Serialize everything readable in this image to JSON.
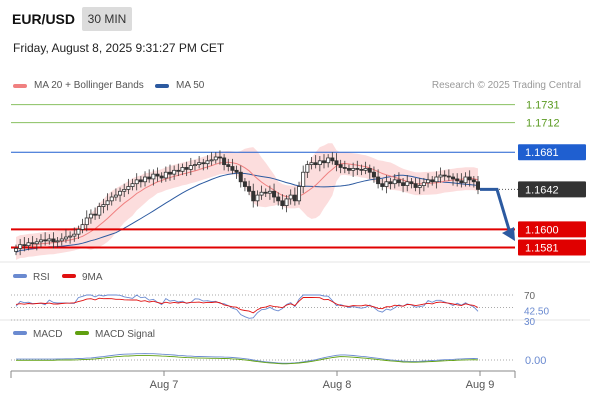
{
  "header": {
    "pair": "EUR/USD",
    "timeframe": "30 MIN",
    "datetime": "Friday, August 8, 2025 9:31:27 PM CET"
  },
  "legend": {
    "ma20_bb": "MA 20 + Bollinger Bands",
    "ma50": "MA 50",
    "credit": "Research © 2025 Trading Central"
  },
  "colors": {
    "bearish_red": "#e00000",
    "resistance_blue": "#1f5fd0",
    "target_green": "#88c060",
    "ma20": "#f08080",
    "ma50": "#2c5aa0",
    "band_fill": "#fbd7d7",
    "candle": "#333333",
    "rsi": "#6a8ad0",
    "rsi_9ma": "#e01010",
    "macd": "#6a8ad0",
    "macd_signal": "#60a010",
    "price_box": "#333333",
    "arrow": "#2c5aa0"
  },
  "chart_data": [
    {
      "type": "candlestick",
      "panel": "price",
      "ylim": [
        1.157,
        1.174
      ],
      "x_ticks": [
        "Aug 7",
        "Aug 8",
        "Aug 9"
      ],
      "current_price": 1.1642,
      "levels": [
        {
          "label": "1.1731",
          "value": 1.1731,
          "kind": "target",
          "color": "#88c060"
        },
        {
          "label": "1.1712",
          "value": 1.1712,
          "kind": "target",
          "color": "#88c060"
        },
        {
          "label": "1.1681",
          "value": 1.1681,
          "kind": "pivot",
          "color": "#1f5fd0"
        },
        {
          "label": "1.1642",
          "value": 1.1642,
          "kind": "last",
          "color": "#333333"
        },
        {
          "label": "1.1600",
          "value": 1.16,
          "kind": "support",
          "color": "#e00000"
        },
        {
          "label": "1.1581",
          "value": 1.1581,
          "kind": "support",
          "color": "#e00000"
        }
      ],
      "series_close": [
        1.158,
        1.1584,
        1.1583,
        1.1586,
        1.1585,
        1.1587,
        1.1589,
        1.1588,
        1.159,
        1.1587,
        1.1588,
        1.159,
        1.1592,
        1.1593,
        1.1595,
        1.16,
        1.1605,
        1.1612,
        1.1616,
        1.1615,
        1.1624,
        1.1626,
        1.163,
        1.1634,
        1.1636,
        1.164,
        1.1642,
        1.1645,
        1.1648,
        1.1652,
        1.165,
        1.1655,
        1.1653,
        1.1658,
        1.1656,
        1.1654,
        1.166,
        1.1658,
        1.1662,
        1.1661,
        1.1665,
        1.1663,
        1.1667,
        1.1668,
        1.167,
        1.1669,
        1.1672,
        1.1673,
        1.1676,
        1.1675,
        1.1668,
        1.1666,
        1.1662,
        1.166,
        1.165,
        1.1645,
        1.164,
        1.163,
        1.1636,
        1.1639,
        1.1638,
        1.164,
        1.1634,
        1.163,
        1.1625,
        1.1632,
        1.1636,
        1.163,
        1.1645,
        1.166,
        1.1668,
        1.167,
        1.1668,
        1.1672,
        1.167,
        1.1675,
        1.1672,
        1.1668,
        1.1665,
        1.1664,
        1.1662,
        1.1664,
        1.1663,
        1.1662,
        1.1664,
        1.166,
        1.1655,
        1.1648,
        1.1645,
        1.165,
        1.1648,
        1.1652,
        1.1649,
        1.1646,
        1.165,
        1.1648,
        1.1644,
        1.1646,
        1.1649,
        1.1652,
        1.165,
        1.1655,
        1.1657,
        1.1656,
        1.1655,
        1.1653,
        1.1651,
        1.1649,
        1.1655,
        1.1652,
        1.165,
        1.1642
      ],
      "projection": {
        "from": 1.1642,
        "to": 1.159
      }
    },
    {
      "type": "line",
      "panel": "rsi",
      "title": "RSI",
      "series": [
        {
          "name": "RSI"
        },
        {
          "name": "9MA"
        }
      ],
      "levels": [
        70,
        42.5,
        30
      ],
      "ylim": [
        0,
        100
      ]
    },
    {
      "type": "line",
      "panel": "macd",
      "title": "MACD",
      "series": [
        {
          "name": "MACD"
        },
        {
          "name": "MACD Signal"
        }
      ],
      "levels": [
        0.0
      ]
    }
  ],
  "rsi_panel": {
    "label_rsi": "RSI",
    "label_ma": "9MA",
    "lvl70": "70",
    "lvl_cur": "42.50",
    "lvl30": "30"
  },
  "macd_panel": {
    "label_macd": "MACD",
    "label_signal": "MACD Signal",
    "lvl0": "0.00"
  },
  "x_axis": {
    "t1": "Aug 7",
    "t2": "Aug 8",
    "t3": "Aug 9"
  }
}
